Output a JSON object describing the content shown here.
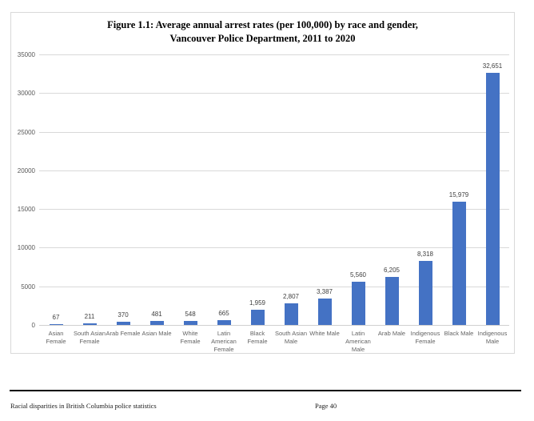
{
  "page": {
    "footer_left": "Racial disparities in British Columbia police statistics",
    "footer_page": "Page 40"
  },
  "chart_data": {
    "type": "bar",
    "title": "Figure 1.1: Average annual arrest rates (per 100,000) by race and gender, Vancouver Police Department, 2011 to 2020",
    "title_line1": "Figure 1.1: Average annual arrest rates (per 100,000) by race and gender,",
    "title_line2": "Vancouver Police Department, 2011 to 2020",
    "xlabel": "",
    "ylabel": "",
    "categories": [
      "Asian Female",
      "South Asian Female",
      "Arab Female",
      "Asian Male",
      "White Female",
      "Latin American Female",
      "Black Female",
      "South Asian Male",
      "White Male",
      "Latin American Male",
      "Arab Male",
      "Indigenous Female",
      "Black Male",
      "Indigenous Male"
    ],
    "category_lines": [
      [
        "Asian",
        "Female"
      ],
      [
        "South Asian",
        "Female"
      ],
      [
        "Arab Female"
      ],
      [
        "Asian Male"
      ],
      [
        "White",
        "Female"
      ],
      [
        "Latin",
        "American",
        "Female"
      ],
      [
        "Black",
        "Female"
      ],
      [
        "South Asian",
        "Male"
      ],
      [
        "White Male"
      ],
      [
        "Latin",
        "American",
        "Male"
      ],
      [
        "Arab Male"
      ],
      [
        "Indigenous",
        "Female"
      ],
      [
        "Black Male"
      ],
      [
        "Indigenous",
        "Male"
      ]
    ],
    "values": [
      67,
      211,
      370,
      481,
      548,
      665,
      1959,
      2807,
      3387,
      5560,
      6205,
      8318,
      15979,
      32651
    ],
    "value_labels": [
      "67",
      "211",
      "370",
      "481",
      "548",
      "665",
      "1,959",
      "2,807",
      "3,387",
      "5,560",
      "6,205",
      "8,318",
      "15,979",
      "32,651"
    ],
    "ylim": [
      0,
      35000
    ],
    "yticks": [
      0,
      5000,
      10000,
      15000,
      20000,
      25000,
      30000,
      35000
    ],
    "ytick_labels": [
      "0",
      "5000",
      "10000",
      "15000",
      "20000",
      "25000",
      "30000",
      "35000"
    ],
    "grid": true,
    "legend": "none",
    "bar_color": "#4472c4",
    "gridline_color": "#d9d9d9",
    "axis_line_color": "#d0d0d0"
  }
}
